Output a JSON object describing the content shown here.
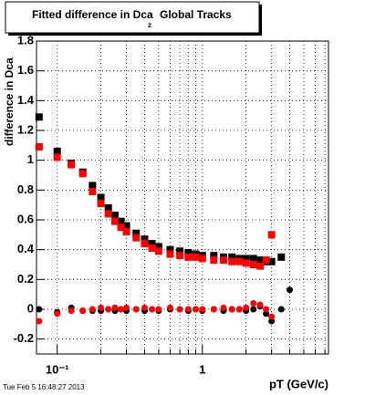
{
  "chart_data": {
    "type": "scatter",
    "title": "Fitted difference in Dca",
    "title_subscript": "z",
    "title_suffix": "Global Tracks",
    "y_label": "difference in Dca",
    "x_label": "pT (GeV/c)",
    "footer": "Tue Feb  5 16:48:27 2013",
    "log_x": true,
    "grid": true,
    "xlim": [
      0.072,
      7.4
    ],
    "ylim": [
      -0.3,
      1.8
    ],
    "xticks": [
      {
        "value": 0.1,
        "label": "10⁻¹"
      },
      1
    ],
    "xgrid": [
      0.2,
      0.3,
      0.4,
      0.5,
      0.6,
      0.7,
      0.8,
      0.9,
      2,
      3,
      4,
      5,
      6,
      7
    ],
    "yticks": [
      -0.2,
      0,
      0.2,
      0.4,
      0.6,
      0.8,
      1,
      1.2,
      1.4,
      1.6,
      1.8
    ],
    "x": [
      0.075,
      0.1,
      0.125,
      0.15,
      0.175,
      0.2,
      0.225,
      0.25,
      0.275,
      0.3,
      0.35,
      0.4,
      0.45,
      0.5,
      0.6,
      0.7,
      0.8,
      0.9,
      1.0,
      1.2,
      1.4,
      1.6,
      1.8,
      2.0,
      2.25,
      2.5,
      2.75,
      3.0,
      3.5,
      4.0
    ],
    "series": [
      {
        "color": "#000000",
        "marker": "square",
        "values": [
          1.29,
          1.06,
          0.98,
          0.92,
          0.83,
          0.75,
          0.68,
          0.63,
          0.59,
          0.56,
          0.51,
          0.47,
          0.44,
          0.42,
          0.4,
          0.39,
          0.38,
          0.37,
          0.36,
          0.36,
          0.35,
          0.35,
          0.34,
          0.34,
          0.34,
          0.33,
          0.32,
          0.32,
          0.35,
          null
        ]
      },
      {
        "color": "#ff0000",
        "marker": "square",
        "values": [
          1.09,
          1.02,
          0.97,
          0.91,
          0.79,
          0.71,
          0.64,
          0.59,
          0.55,
          0.52,
          0.48,
          0.44,
          0.41,
          0.39,
          0.37,
          0.36,
          0.35,
          0.35,
          0.34,
          0.33,
          0.33,
          0.32,
          0.32,
          0.31,
          0.3,
          0.29,
          0.33,
          0.5,
          null,
          null
        ]
      },
      {
        "color": "#000000",
        "marker": "circle",
        "values": [
          0.0,
          -0.02,
          0.01,
          -0.01,
          -0.01,
          -0.01,
          0.0,
          -0.01,
          0.0,
          -0.01,
          0.0,
          -0.01,
          0.0,
          -0.01,
          0.0,
          0.0,
          -0.01,
          0.0,
          -0.01,
          0.0,
          -0.01,
          0.0,
          0.0,
          -0.01,
          0.0,
          0.02,
          -0.03,
          -0.08,
          0.0,
          0.13
        ]
      },
      {
        "color": "#ff0000",
        "marker": "circle",
        "values": [
          -0.08,
          -0.03,
          -0.01,
          -0.01,
          0.0,
          0.01,
          0.0,
          0.01,
          0.0,
          0.01,
          0.0,
          0.01,
          0.0,
          0.0,
          0.01,
          0.0,
          0.0,
          0.0,
          0.0,
          0.0,
          0.01,
          0.0,
          0.0,
          0.01,
          0.04,
          0.03,
          0.0,
          -0.05,
          null,
          null
        ]
      }
    ]
  }
}
